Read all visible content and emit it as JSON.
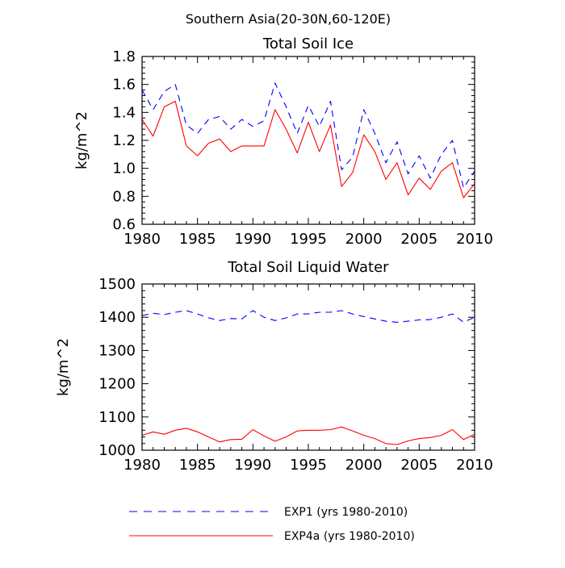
{
  "figure": {
    "title": "Southern Asia(20-30N,60-120E)"
  },
  "legend": {
    "placement": "bottom",
    "items": [
      {
        "label": "EXP1 (yrs 1980-2010)",
        "color": "#0000ff",
        "dash": "dashed"
      },
      {
        "label": "EXP4a (yrs 1980-2010)",
        "color": "#ff0000",
        "dash": "solid"
      }
    ]
  },
  "chart_data": [
    {
      "type": "line",
      "title": "Total Soil Ice",
      "xlabel": "",
      "ylabel": "kg/m^2",
      "xlim": [
        1980,
        2010
      ],
      "ylim": [
        0.6,
        1.8
      ],
      "xticks": [
        1980,
        1985,
        1990,
        1995,
        2000,
        2005,
        2010
      ],
      "yticks": [
        0.6,
        0.8,
        1.0,
        1.2,
        1.4,
        1.6,
        1.8
      ],
      "ytick_labels": [
        "0.6",
        "0.8",
        "1.0",
        "1.2",
        "1.4",
        "1.6",
        "1.8"
      ],
      "x": [
        1980,
        1981,
        1982,
        1983,
        1984,
        1985,
        1986,
        1987,
        1988,
        1989,
        1990,
        1991,
        1992,
        1993,
        1994,
        1995,
        1996,
        1997,
        1998,
        1999,
        2000,
        2001,
        2002,
        2003,
        2004,
        2005,
        2006,
        2007,
        2008,
        2009,
        2010
      ],
      "series": [
        {
          "name": "EXP1 (yrs 1980-2010)",
          "color": "#0000ff",
          "dash": "dashed",
          "values": [
            1.56,
            1.42,
            1.55,
            1.6,
            1.31,
            1.25,
            1.35,
            1.37,
            1.28,
            1.35,
            1.3,
            1.34,
            1.61,
            1.44,
            1.25,
            1.45,
            1.3,
            1.48,
            0.99,
            1.08,
            1.42,
            1.25,
            1.04,
            1.19,
            0.96,
            1.09,
            0.93,
            1.1,
            1.2,
            0.86,
            0.98
          ]
        },
        {
          "name": "EXP4a (yrs 1980-2010)",
          "color": "#ff0000",
          "dash": "solid",
          "values": [
            1.35,
            1.23,
            1.44,
            1.48,
            1.16,
            1.09,
            1.18,
            1.21,
            1.12,
            1.16,
            1.16,
            1.16,
            1.42,
            1.28,
            1.11,
            1.33,
            1.12,
            1.31,
            0.87,
            0.97,
            1.24,
            1.12,
            0.92,
            1.04,
            0.81,
            0.93,
            0.85,
            0.98,
            1.04,
            0.79,
            0.89
          ]
        }
      ]
    },
    {
      "type": "line",
      "title": "Total Soil Liquid Water",
      "xlabel": "",
      "ylabel": "kg/m^2",
      "xlim": [
        1980,
        2010
      ],
      "ylim": [
        1000,
        1500
      ],
      "xticks": [
        1980,
        1985,
        1990,
        1995,
        2000,
        2005,
        2010
      ],
      "yticks": [
        1000,
        1100,
        1200,
        1300,
        1400,
        1500
      ],
      "ytick_labels": [
        "1000",
        "1100",
        "1200",
        "1300",
        "1400",
        "1500"
      ],
      "x": [
        1980,
        1981,
        1982,
        1983,
        1984,
        1985,
        1986,
        1987,
        1988,
        1989,
        1990,
        1991,
        1992,
        1993,
        1994,
        1995,
        1996,
        1997,
        1998,
        1999,
        2000,
        2001,
        2002,
        2003,
        2004,
        2005,
        2006,
        2007,
        2008,
        2009,
        2010
      ],
      "series": [
        {
          "name": "EXP1 (yrs 1980-2010)",
          "color": "#0000ff",
          "dash": "dashed",
          "values": [
            1405,
            1412,
            1408,
            1415,
            1420,
            1410,
            1398,
            1390,
            1396,
            1395,
            1420,
            1400,
            1390,
            1398,
            1410,
            1410,
            1415,
            1415,
            1420,
            1410,
            1402,
            1395,
            1388,
            1385,
            1388,
            1392,
            1393,
            1400,
            1410,
            1385,
            1400
          ]
        },
        {
          "name": "EXP4a (yrs 1980-2010)",
          "color": "#ff0000",
          "dash": "solid",
          "values": [
            1045,
            1055,
            1048,
            1060,
            1066,
            1055,
            1040,
            1025,
            1032,
            1033,
            1062,
            1043,
            1027,
            1040,
            1058,
            1060,
            1060,
            1062,
            1070,
            1058,
            1045,
            1035,
            1020,
            1017,
            1028,
            1035,
            1038,
            1045,
            1062,
            1032,
            1048
          ]
        }
      ]
    }
  ]
}
